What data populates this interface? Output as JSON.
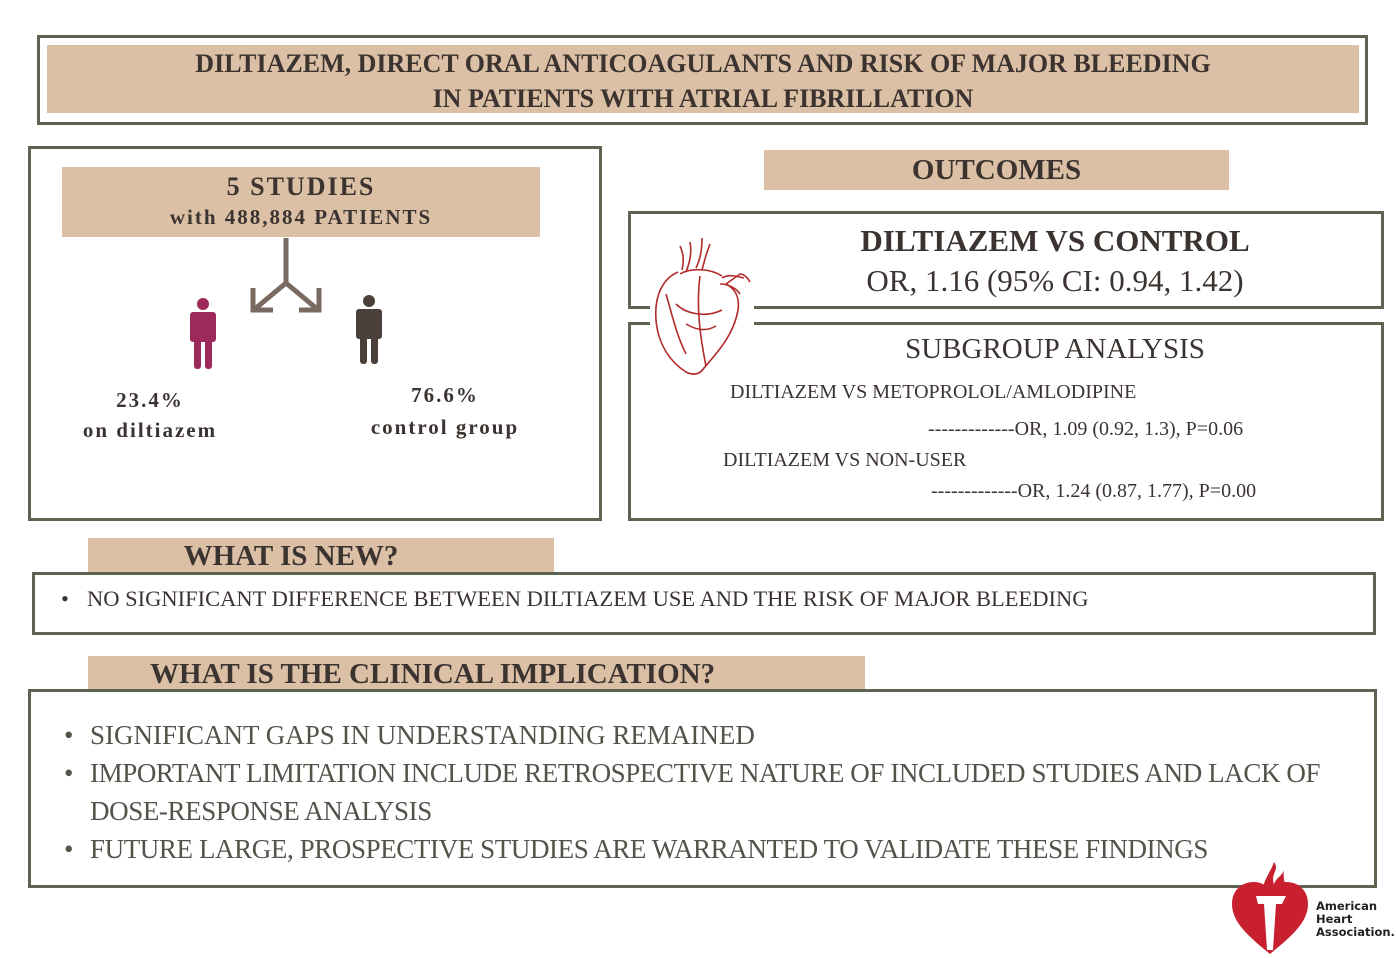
{
  "title": {
    "line1": "DILTIAZEM, DIRECT ORAL ANTICOAGULANTS AND RISK OF MAJOR BLEEDING",
    "line2": "IN PATIENTS WITH ATRIAL FIBRILLATION"
  },
  "studies": {
    "count": "5 STUDIES",
    "patients": "with 488,884 PATIENTS",
    "diltiazem": {
      "percent": "23.4%",
      "label": "on diltiazem",
      "color": "#9c2a5a"
    },
    "control": {
      "percent": "76.6%",
      "label": "control group",
      "color": "#4a3f39"
    }
  },
  "outcomes": {
    "header": "OUTCOMES",
    "main_title": "DILTIAZEM VS CONTROL",
    "main_result": "OR, 1.16 (95% CI: 0.94, 1.42)",
    "subgroup_title": "SUBGROUP ANALYSIS",
    "subgroups": [
      {
        "label": "DILTIAZEM VS METOPROLOL/AMLODIPINE",
        "result": "-------------OR, 1.09 (0.92, 1.3), P=0.06"
      },
      {
        "label": "DILTIAZEM VS NON-USER",
        "result": "-------------OR, 1.24 (0.87, 1.77), P=0.00"
      }
    ]
  },
  "what_is_new": {
    "header": "WHAT IS NEW?",
    "items": [
      "NO SIGNIFICANT DIFFERENCE BETWEEN DILTIAZEM USE AND THE RISK OF MAJOR BLEEDING"
    ]
  },
  "clinical": {
    "header": "WHAT IS THE CLINICAL IMPLICATION?",
    "items": [
      "SIGNIFICANT GAPS IN UNDERSTANDING REMAINED",
      "IMPORTANT LIMITATION INCLUDE RETROSPECTIVE NATURE OF INCLUDED STUDIES AND LACK OF DOSE-RESPONSE ANALYSIS",
      "FUTURE LARGE, PROSPECTIVE STUDIES ARE WARRANTED TO VALIDATE  THESE FINDINGS"
    ]
  },
  "logo": {
    "text": "American Heart Association."
  },
  "colors": {
    "beige": "#dcc0a6",
    "border": "#5e6452",
    "heart": "#b22a2a"
  }
}
